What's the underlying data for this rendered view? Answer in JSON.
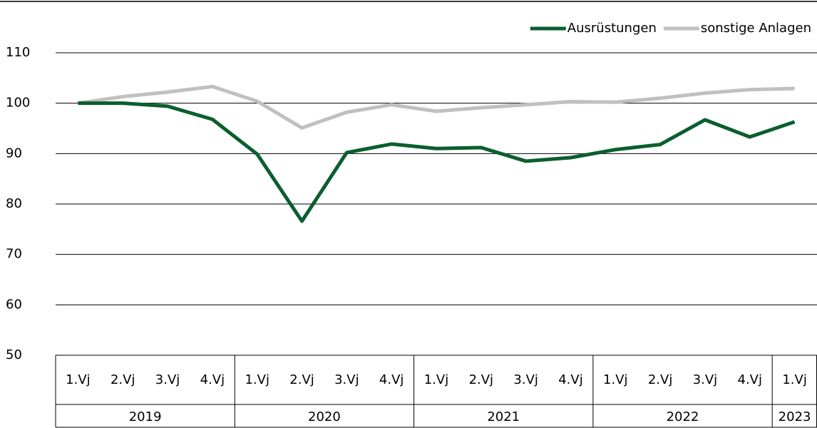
{
  "chart_data": {
    "type": "line",
    "categories": [
      "1.Vj",
      "2.Vj",
      "3.Vj",
      "4.Vj",
      "1.Vj",
      "2.Vj",
      "3.Vj",
      "4.Vj",
      "1.Vj",
      "2.Vj",
      "3.Vj",
      "4.Vj",
      "1.Vj",
      "2.Vj",
      "3.Vj",
      "4.Vj",
      "1.Vj"
    ],
    "category_groups": [
      {
        "label": "2019",
        "span": 4
      },
      {
        "label": "2020",
        "span": 4
      },
      {
        "label": "2021",
        "span": 4
      },
      {
        "label": "2022",
        "span": 4
      },
      {
        "label": "2023",
        "span": 1
      }
    ],
    "series": [
      {
        "name": "Ausrüstungen",
        "color": "#0b5e2e",
        "values": [
          100,
          100,
          99.4,
          96.8,
          89.9,
          76.6,
          90.2,
          91.9,
          91.0,
          91.2,
          88.5,
          89.2,
          90.8,
          91.8,
          96.7,
          93.3,
          96.3
        ]
      },
      {
        "name": "sonstige Anlagen",
        "color": "#c0c0c0",
        "values": [
          100,
          101.3,
          102.2,
          103.3,
          100.4,
          95.1,
          98.2,
          99.7,
          98.4,
          99.1,
          99.7,
          100.3,
          100.2,
          101.0,
          102.0,
          102.7,
          102.9
        ]
      }
    ],
    "ylim": [
      50,
      110
    ],
    "yticks": [
      50,
      60,
      70,
      80,
      90,
      100,
      110
    ],
    "grid": true,
    "legend": "top-right"
  }
}
